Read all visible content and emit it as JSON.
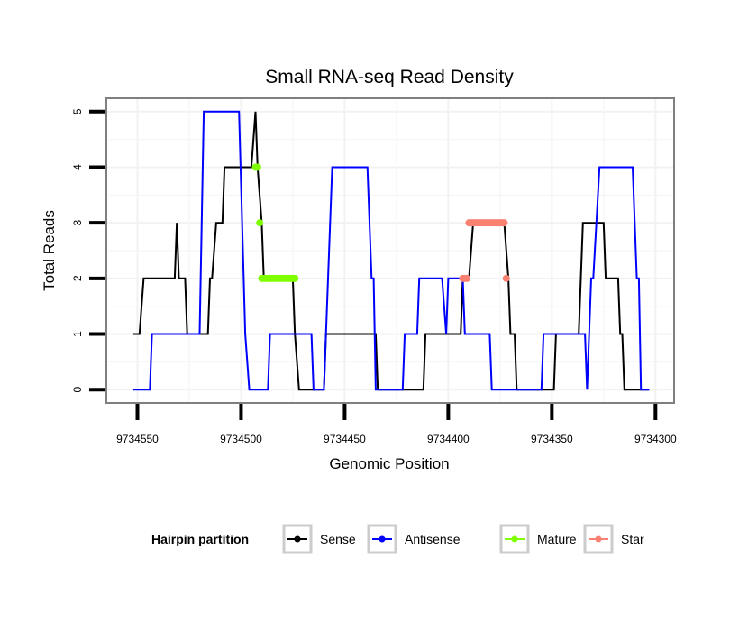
{
  "chart_data": {
    "type": "line",
    "title": "Small RNA-seq Read Density",
    "xlabel": "Genomic Position",
    "ylabel": "Total Reads",
    "x_reversed": true,
    "xlim": [
      9734565,
      9734291
    ],
    "ylim": [
      -0.24,
      5.24
    ],
    "xticks": [
      9734550,
      9734500,
      9734450,
      9734400,
      9734350,
      9734300
    ],
    "xtick_labels": [
      "9734550",
      "9734500",
      "9734450",
      "9734400",
      "9734350",
      "9734300"
    ],
    "yticks": [
      0,
      1,
      2,
      3,
      4,
      5
    ],
    "ytick_labels": [
      "0",
      "1",
      "2",
      "3",
      "4",
      "5"
    ],
    "grid": true,
    "legend": {
      "title": "Hairpin partition",
      "position": "bottom",
      "entries": [
        {
          "label": "Sense",
          "color": "#000000"
        },
        {
          "label": "Antisense",
          "color": "#0000ff"
        },
        {
          "label": "Mature",
          "color": "#7fff00"
        },
        {
          "label": "Star",
          "color": "#fa8072"
        }
      ]
    },
    "series": [
      {
        "name": "Sense",
        "color": "#000000",
        "style": "line",
        "x": [
          9734552,
          9734549,
          9734547,
          9734532,
          9734531,
          9734530,
          9734527,
          9734526,
          9734516,
          9734515,
          9734514,
          9734512,
          9734509,
          9734508,
          9734495,
          9734493,
          9734492,
          9734490,
          9734489,
          9734475,
          9734474,
          9734472,
          9734460,
          9734459,
          9734435,
          9734434,
          9734412,
          9734411,
          9734394,
          9734393,
          9734390,
          9734388,
          9734373,
          9734371,
          9734370,
          9734368,
          9734367,
          9734349,
          9734348,
          9734337,
          9734335,
          9734325,
          9734324,
          9734318,
          9734317,
          9734316,
          9734315,
          9734303
        ],
        "y": [
          1,
          1,
          2,
          2,
          3,
          2,
          2,
          1,
          1,
          2,
          2,
          3,
          3,
          4,
          4,
          5,
          4,
          3,
          2,
          2,
          1,
          0,
          0,
          1,
          1,
          0,
          0,
          1,
          1,
          2,
          2,
          3,
          3,
          2,
          1,
          1,
          0,
          0,
          1,
          1,
          3,
          3,
          2,
          2,
          1,
          1,
          0,
          0
        ]
      },
      {
        "name": "Antisense",
        "color": "#0000ff",
        "style": "line",
        "x": [
          9734552,
          9734544,
          9734543,
          9734520,
          9734518,
          9734501,
          9734498,
          9734496,
          9734487,
          9734486,
          9734466,
          9734465,
          9734460,
          9734456,
          9734439,
          9734437,
          9734436,
          9734435,
          9734422,
          9734421,
          9734415,
          9734414,
          9734403,
          9734401,
          9734400,
          9734393,
          9734392,
          9734380,
          9734379,
          9734355,
          9734354,
          9734334,
          9734333,
          9734331,
          9734330,
          9734327,
          9734311,
          9734309,
          9734308,
          9734307,
          9734303
        ],
        "y": [
          0,
          0,
          1,
          1,
          5,
          5,
          1,
          0,
          0,
          1,
          1,
          0,
          0,
          4,
          4,
          2,
          2,
          0,
          0,
          1,
          1,
          2,
          2,
          1,
          2,
          2,
          1,
          1,
          0,
          0,
          1,
          1,
          0,
          2,
          2,
          4,
          4,
          2,
          2,
          0,
          0
        ]
      },
      {
        "name": "Mature",
        "color": "#7fff00",
        "style": "points",
        "x": [
          9734493,
          9734492,
          9734491,
          9734490,
          9734489,
          9734488,
          9734487,
          9734486,
          9734485,
          9734484,
          9734483,
          9734482,
          9734481,
          9734480,
          9734479,
          9734478,
          9734477,
          9734476,
          9734475,
          9734474
        ],
        "y": [
          4,
          4,
          3,
          2,
          2,
          2,
          2,
          2,
          2,
          2,
          2,
          2,
          2,
          2,
          2,
          2,
          2,
          2,
          2,
          2
        ]
      },
      {
        "name": "Star",
        "color": "#fa8072",
        "style": "points",
        "x": [
          9734393,
          9734392,
          9734391,
          9734390,
          9734389,
          9734388,
          9734387,
          9734386,
          9734385,
          9734384,
          9734383,
          9734382,
          9734381,
          9734380,
          9734379,
          9734378,
          9734377,
          9734376,
          9734375,
          9734374,
          9734373,
          9734372
        ],
        "y": [
          2,
          2,
          2,
          3,
          3,
          3,
          3,
          3,
          3,
          3,
          3,
          3,
          3,
          3,
          3,
          3,
          3,
          3,
          3,
          3,
          3,
          2
        ]
      }
    ]
  }
}
